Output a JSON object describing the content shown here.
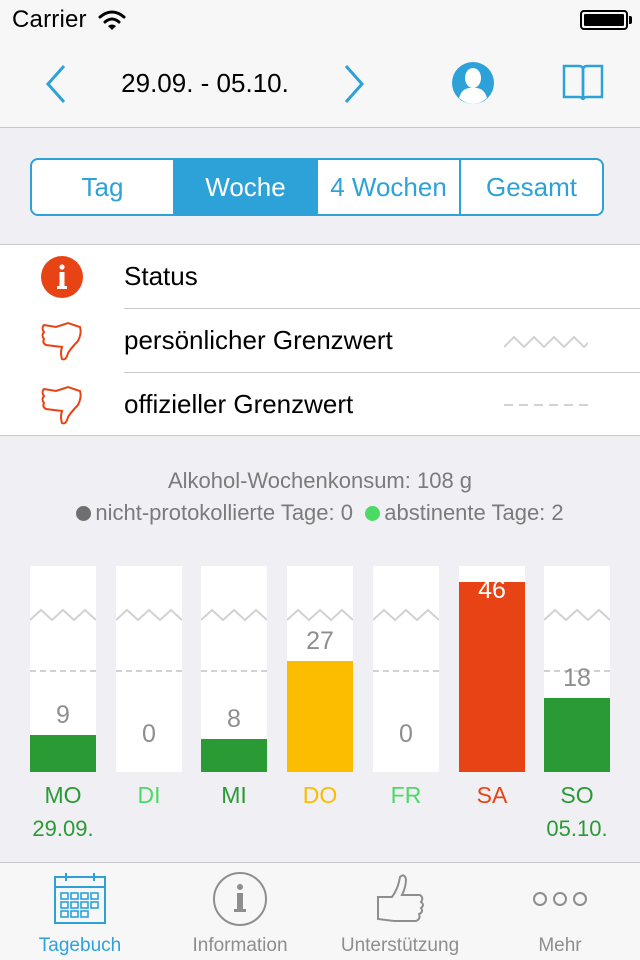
{
  "status_bar": {
    "carrier": "Carrier"
  },
  "nav": {
    "date_range": "29.09. - 05.10."
  },
  "segments": [
    {
      "label": "Tag",
      "active": false
    },
    {
      "label": "Woche",
      "active": true
    },
    {
      "label": "4 Wochen",
      "active": false
    },
    {
      "label": "Gesamt",
      "active": false
    }
  ],
  "legend": [
    {
      "label": "Status",
      "icon": "info-icon"
    },
    {
      "label": "persönlicher Grenzwert",
      "icon": "thumbs-down-icon",
      "marker": "zigzag-line"
    },
    {
      "label": "offizieller Grenzwert",
      "icon": "thumbs-down-icon",
      "marker": "dashed-line"
    }
  ],
  "summary": {
    "weekly_consumption": "Alkohol-Wochenkonsum: 108 g",
    "not_logged": "nicht-protokollierte Tage: 0",
    "abstinent": "abstinente Tage: 2"
  },
  "colors": {
    "accent": "#2da2d9",
    "green": "#2a9a35",
    "light_green": "#4cd964",
    "yellow": "#fcbc00",
    "red": "#e74314",
    "grey_dot": "#6f6f6f"
  },
  "chart_data": {
    "type": "bar",
    "categories": [
      "MO",
      "DI",
      "MI",
      "DO",
      "FR",
      "SA",
      "SO"
    ],
    "values": [
      9,
      0,
      8,
      27,
      0,
      46,
      18
    ],
    "value_labels": [
      "9",
      "0",
      "8",
      "27",
      "0",
      "46",
      "18"
    ],
    "day_colors": [
      "#2a9a35",
      "#4cd964",
      "#2a9a35",
      "#fcbc00",
      "#4cd964",
      "#e74314",
      "#2a9a35"
    ],
    "dates": [
      "29.09.",
      "",
      "",
      "",
      "",
      "",
      "05.10."
    ],
    "ylim": [
      0,
      50
    ],
    "personal_limit": 40,
    "official_limit": 24
  },
  "tabs": [
    {
      "label": "Tagebuch",
      "icon": "calendar-icon",
      "active": true
    },
    {
      "label": "Information",
      "icon": "info-circle-icon",
      "active": false
    },
    {
      "label": "Unterstützung",
      "icon": "thumbs-up-icon",
      "active": false
    },
    {
      "label": "Mehr",
      "icon": "more-icon",
      "active": false
    }
  ]
}
